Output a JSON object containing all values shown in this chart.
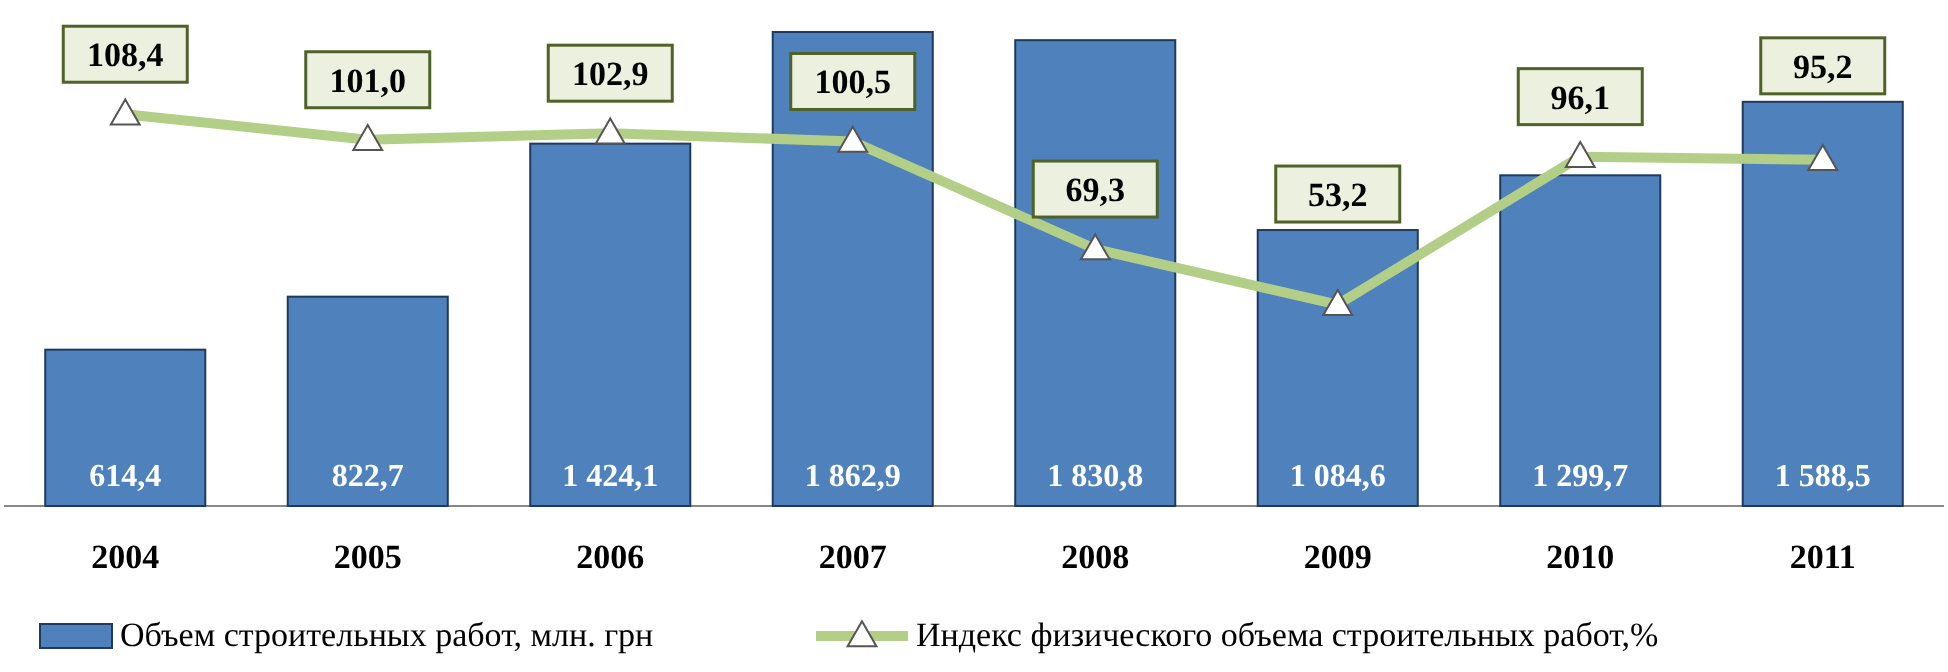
{
  "chart_data": {
    "type": "bar",
    "categories": [
      "2004",
      "2005",
      "2006",
      "2007",
      "2008",
      "2009",
      "2010",
      "2011"
    ],
    "series": [
      {
        "name": "Объем строительных работ, млн. грн",
        "color": "#4f81bd",
        "values": [
          614.4,
          822.7,
          1424.1,
          1862.9,
          1830.8,
          1084.6,
          1299.7,
          1588.5
        ],
        "value_labels": [
          "614,4",
          "822,7",
          "1 424,1",
          "1 862,9",
          "1 830,8",
          "1 084,6",
          "1 299,7",
          "1 588,5"
        ]
      },
      {
        "type": "line",
        "axis": "y2",
        "name": "Индекс физического объема строительных работ,%",
        "color": "#b3cf87",
        "marker": "triangle",
        "values": [
          108.4,
          101.0,
          102.9,
          100.5,
          69.3,
          53.2,
          96.1,
          95.2
        ],
        "value_labels": [
          "108,4",
          "101,0",
          "102,9",
          "100,5",
          "69,3",
          "53,2",
          "96,1",
          "95,2"
        ]
      }
    ],
    "legend": "bottom"
  }
}
